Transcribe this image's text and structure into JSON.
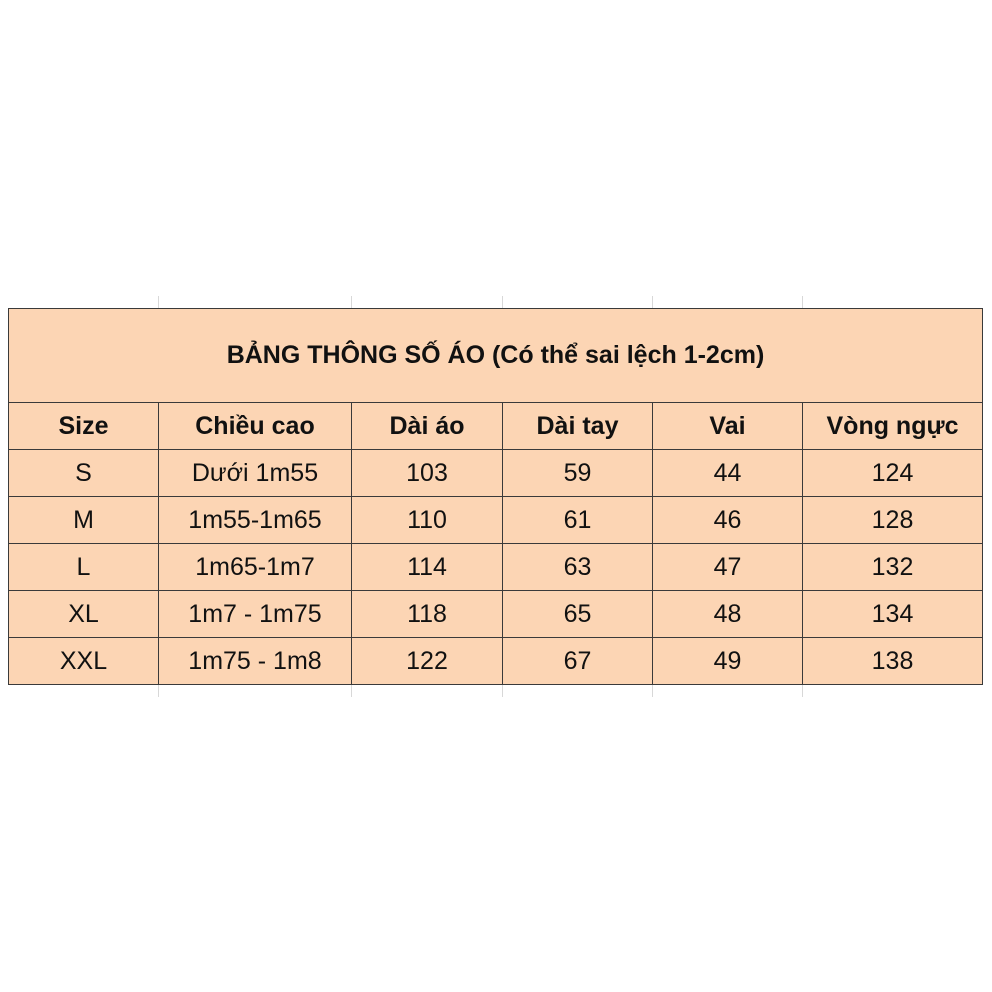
{
  "table": {
    "title": "BẢNG THÔNG SỐ ÁO (Có thể sai lệch 1-2cm)",
    "header": [
      "Size",
      "Chiều cao",
      "Dài áo",
      "Dài tay",
      "Vai",
      "Vòng ngực"
    ],
    "rows": [
      [
        "S",
        "Dưới 1m55",
        103,
        59,
        44,
        124
      ],
      [
        "M",
        "1m55-1m65",
        110,
        61,
        46,
        128
      ],
      [
        "L",
        "1m65-1m7",
        114,
        63,
        47,
        132
      ],
      [
        "XL",
        "1m7 - 1m75",
        118,
        65,
        48,
        134
      ],
      [
        "XXL",
        "1m75 - 1m8",
        122,
        67,
        49,
        138
      ]
    ]
  }
}
